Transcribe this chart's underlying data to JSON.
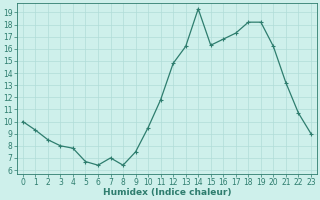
{
  "x": [
    0,
    1,
    2,
    3,
    4,
    5,
    6,
    7,
    8,
    9,
    10,
    11,
    12,
    13,
    14,
    15,
    16,
    17,
    18,
    19,
    20,
    21,
    22,
    23
  ],
  "y": [
    10.0,
    9.3,
    8.5,
    8.0,
    7.8,
    6.7,
    6.4,
    7.0,
    6.4,
    7.5,
    9.5,
    11.8,
    14.8,
    16.2,
    19.3,
    16.3,
    16.8,
    17.3,
    18.2,
    18.2,
    16.2,
    13.2,
    10.7,
    9.0
  ],
  "line_color": "#2e7d6e",
  "marker": "+",
  "marker_size": 3,
  "marker_linewidth": 0.8,
  "bg_color": "#cef0eb",
  "grid_color": "#b0ddd8",
  "xlabel": "Humidex (Indice chaleur)",
  "ylabel_ticks": [
    6,
    7,
    8,
    9,
    10,
    11,
    12,
    13,
    14,
    15,
    16,
    17,
    18,
    19
  ],
  "ylim": [
    5.7,
    19.8
  ],
  "xlim": [
    -0.5,
    23.5
  ],
  "xticks": [
    0,
    1,
    2,
    3,
    4,
    5,
    6,
    7,
    8,
    9,
    10,
    11,
    12,
    13,
    14,
    15,
    16,
    17,
    18,
    19,
    20,
    21,
    22,
    23
  ],
  "tick_fontsize": 5.5,
  "xlabel_fontsize": 6.5,
  "xlabel_fontweight": "bold",
  "linewidth": 0.9
}
